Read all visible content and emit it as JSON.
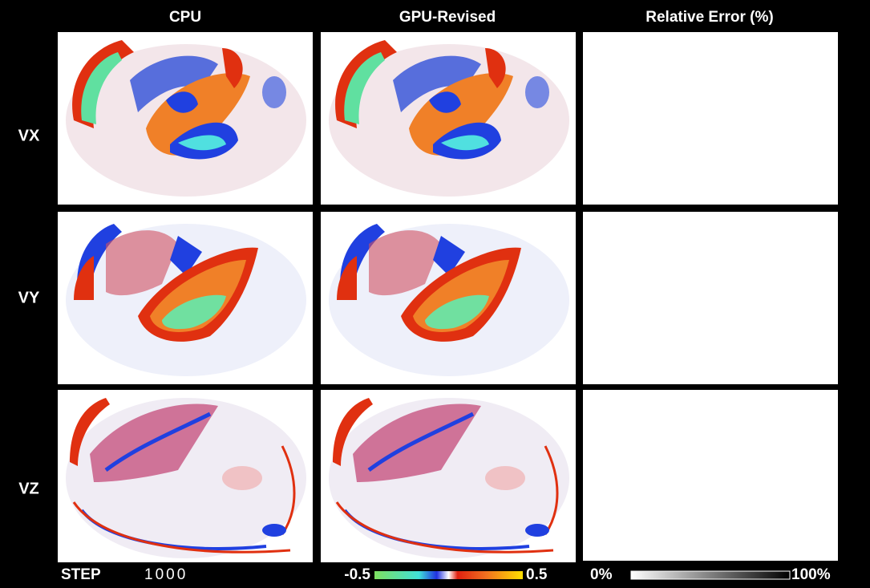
{
  "header": {
    "columns": [
      "CPU",
      "GPU-Revised",
      "Relative Error (%)"
    ]
  },
  "rows": [
    "VX",
    "VY",
    "VZ"
  ],
  "footer": {
    "step_label": "STEP",
    "step_value": 1000,
    "velocity_colorbar": {
      "min_label": -0.5,
      "max_label": 0.5
    },
    "error_colorbar": {
      "min_label": "0%",
      "max_label": "100%"
    }
  }
}
